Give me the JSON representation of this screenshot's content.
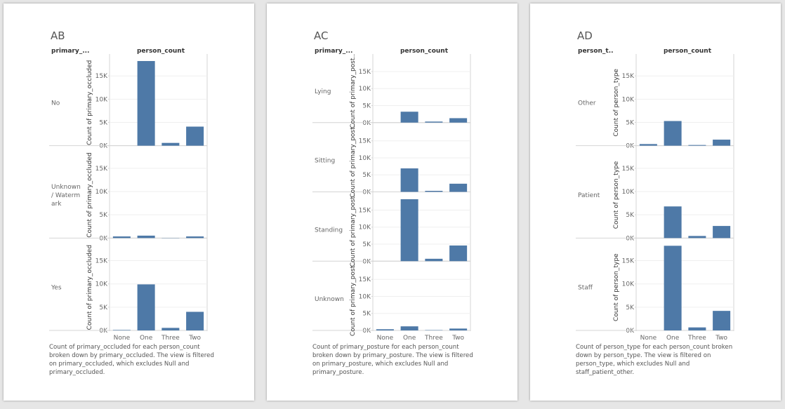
{
  "charts": [
    {
      "id": "ab",
      "title": "AB",
      "row_header": "primary_...",
      "col_header": "person_count",
      "caption_lines": [
        "Count of primary_occluded for each person_count",
        "broken down by primary_occluded. The view is filtered",
        "on primary_occluded, which excludes Null and",
        "primary_occluded."
      ]
    },
    {
      "id": "ac",
      "title": "AC",
      "row_header": "primary_...",
      "col_header": "person_count",
      "caption_lines": [
        "Count of primary_posture for each person_count",
        "broken down by primary_posture. The view is filtered",
        "on primary_posture, which excludes Null and",
        "primary_posture."
      ]
    },
    {
      "id": "ad",
      "title": "AD",
      "row_header": "person_t..",
      "col_header": "person_count",
      "caption_lines": [
        "Count of person_type for each person_count broken",
        "down by person_type. The view is filtered on",
        "person_type, which excludes Null and",
        "staff_patient_other."
      ]
    }
  ],
  "chart_data": [
    {
      "type": "bar",
      "title": "AB",
      "xlabel": "person_count",
      "ylabel": "Count of primary_occluded",
      "categories": [
        "None",
        "One",
        "Three",
        "Two"
      ],
      "yticks": [
        "0K",
        "5K",
        "10K",
        "15K"
      ],
      "ylim": [
        0,
        18500
      ],
      "facet_label": "primary_...",
      "facets": [
        {
          "name": "No",
          "values": [
            0,
            18200,
            600,
            4100
          ]
        },
        {
          "name": "Unknown / Watermark",
          "values": [
            350,
            520,
            50,
            350
          ]
        },
        {
          "name": "Yes",
          "values": [
            100,
            9900,
            550,
            4000
          ]
        }
      ],
      "bar_color": "#4e79a7",
      "grid": true
    },
    {
      "type": "bar",
      "title": "AC",
      "xlabel": "person_count",
      "ylabel": "Count of primary_post..",
      "categories": [
        "None",
        "One",
        "Three",
        "Two"
      ],
      "yticks": [
        "0K",
        "5K",
        "10K",
        "15K"
      ],
      "ylim": [
        0,
        18500
      ],
      "facet_label": "primary_...",
      "facets": [
        {
          "name": "Lying",
          "values": [
            0,
            3200,
            300,
            1300
          ]
        },
        {
          "name": "Sitting",
          "values": [
            0,
            6900,
            300,
            2400
          ]
        },
        {
          "name": "Standing",
          "values": [
            0,
            18200,
            700,
            4600
          ]
        },
        {
          "name": "Unknown",
          "values": [
            350,
            1200,
            100,
            550
          ]
        }
      ],
      "bar_color": "#4e79a7",
      "grid": true
    },
    {
      "type": "bar",
      "title": "AD",
      "xlabel": "person_count",
      "ylabel": "Count of person_type",
      "categories": [
        "None",
        "One",
        "Three",
        "Two"
      ],
      "yticks": [
        "0K",
        "5K",
        "10K",
        "15K"
      ],
      "ylim": [
        0,
        18500
      ],
      "facet_label": "person_t..",
      "facets": [
        {
          "name": "Other",
          "values": [
            350,
            5300,
            150,
            1300
          ]
        },
        {
          "name": "Patient",
          "values": [
            0,
            6800,
            450,
            2600
          ]
        },
        {
          "name": "Staff",
          "values": [
            0,
            18200,
            650,
            4200
          ]
        }
      ],
      "bar_color": "#4e79a7",
      "grid": true
    }
  ]
}
